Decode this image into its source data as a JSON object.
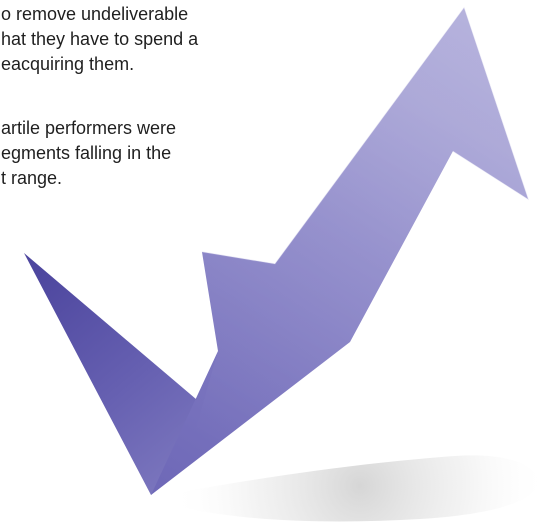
{
  "text_block": {
    "paragraph_1": [
      "o remove undeliverable",
      "hat they have to spend a",
      "eacquiring them."
    ],
    "paragraph_2": [
      "artile performers were",
      "egments falling in the",
      "t range."
    ]
  },
  "graphic": {
    "icon": "upward-check-arrow-icon",
    "colors": {
      "arrow_dark": "#5f56a8",
      "arrow_mid": "#7f7ac0",
      "arrow_light": "#a7a3d6",
      "shadow": "#bdbdbd"
    }
  }
}
